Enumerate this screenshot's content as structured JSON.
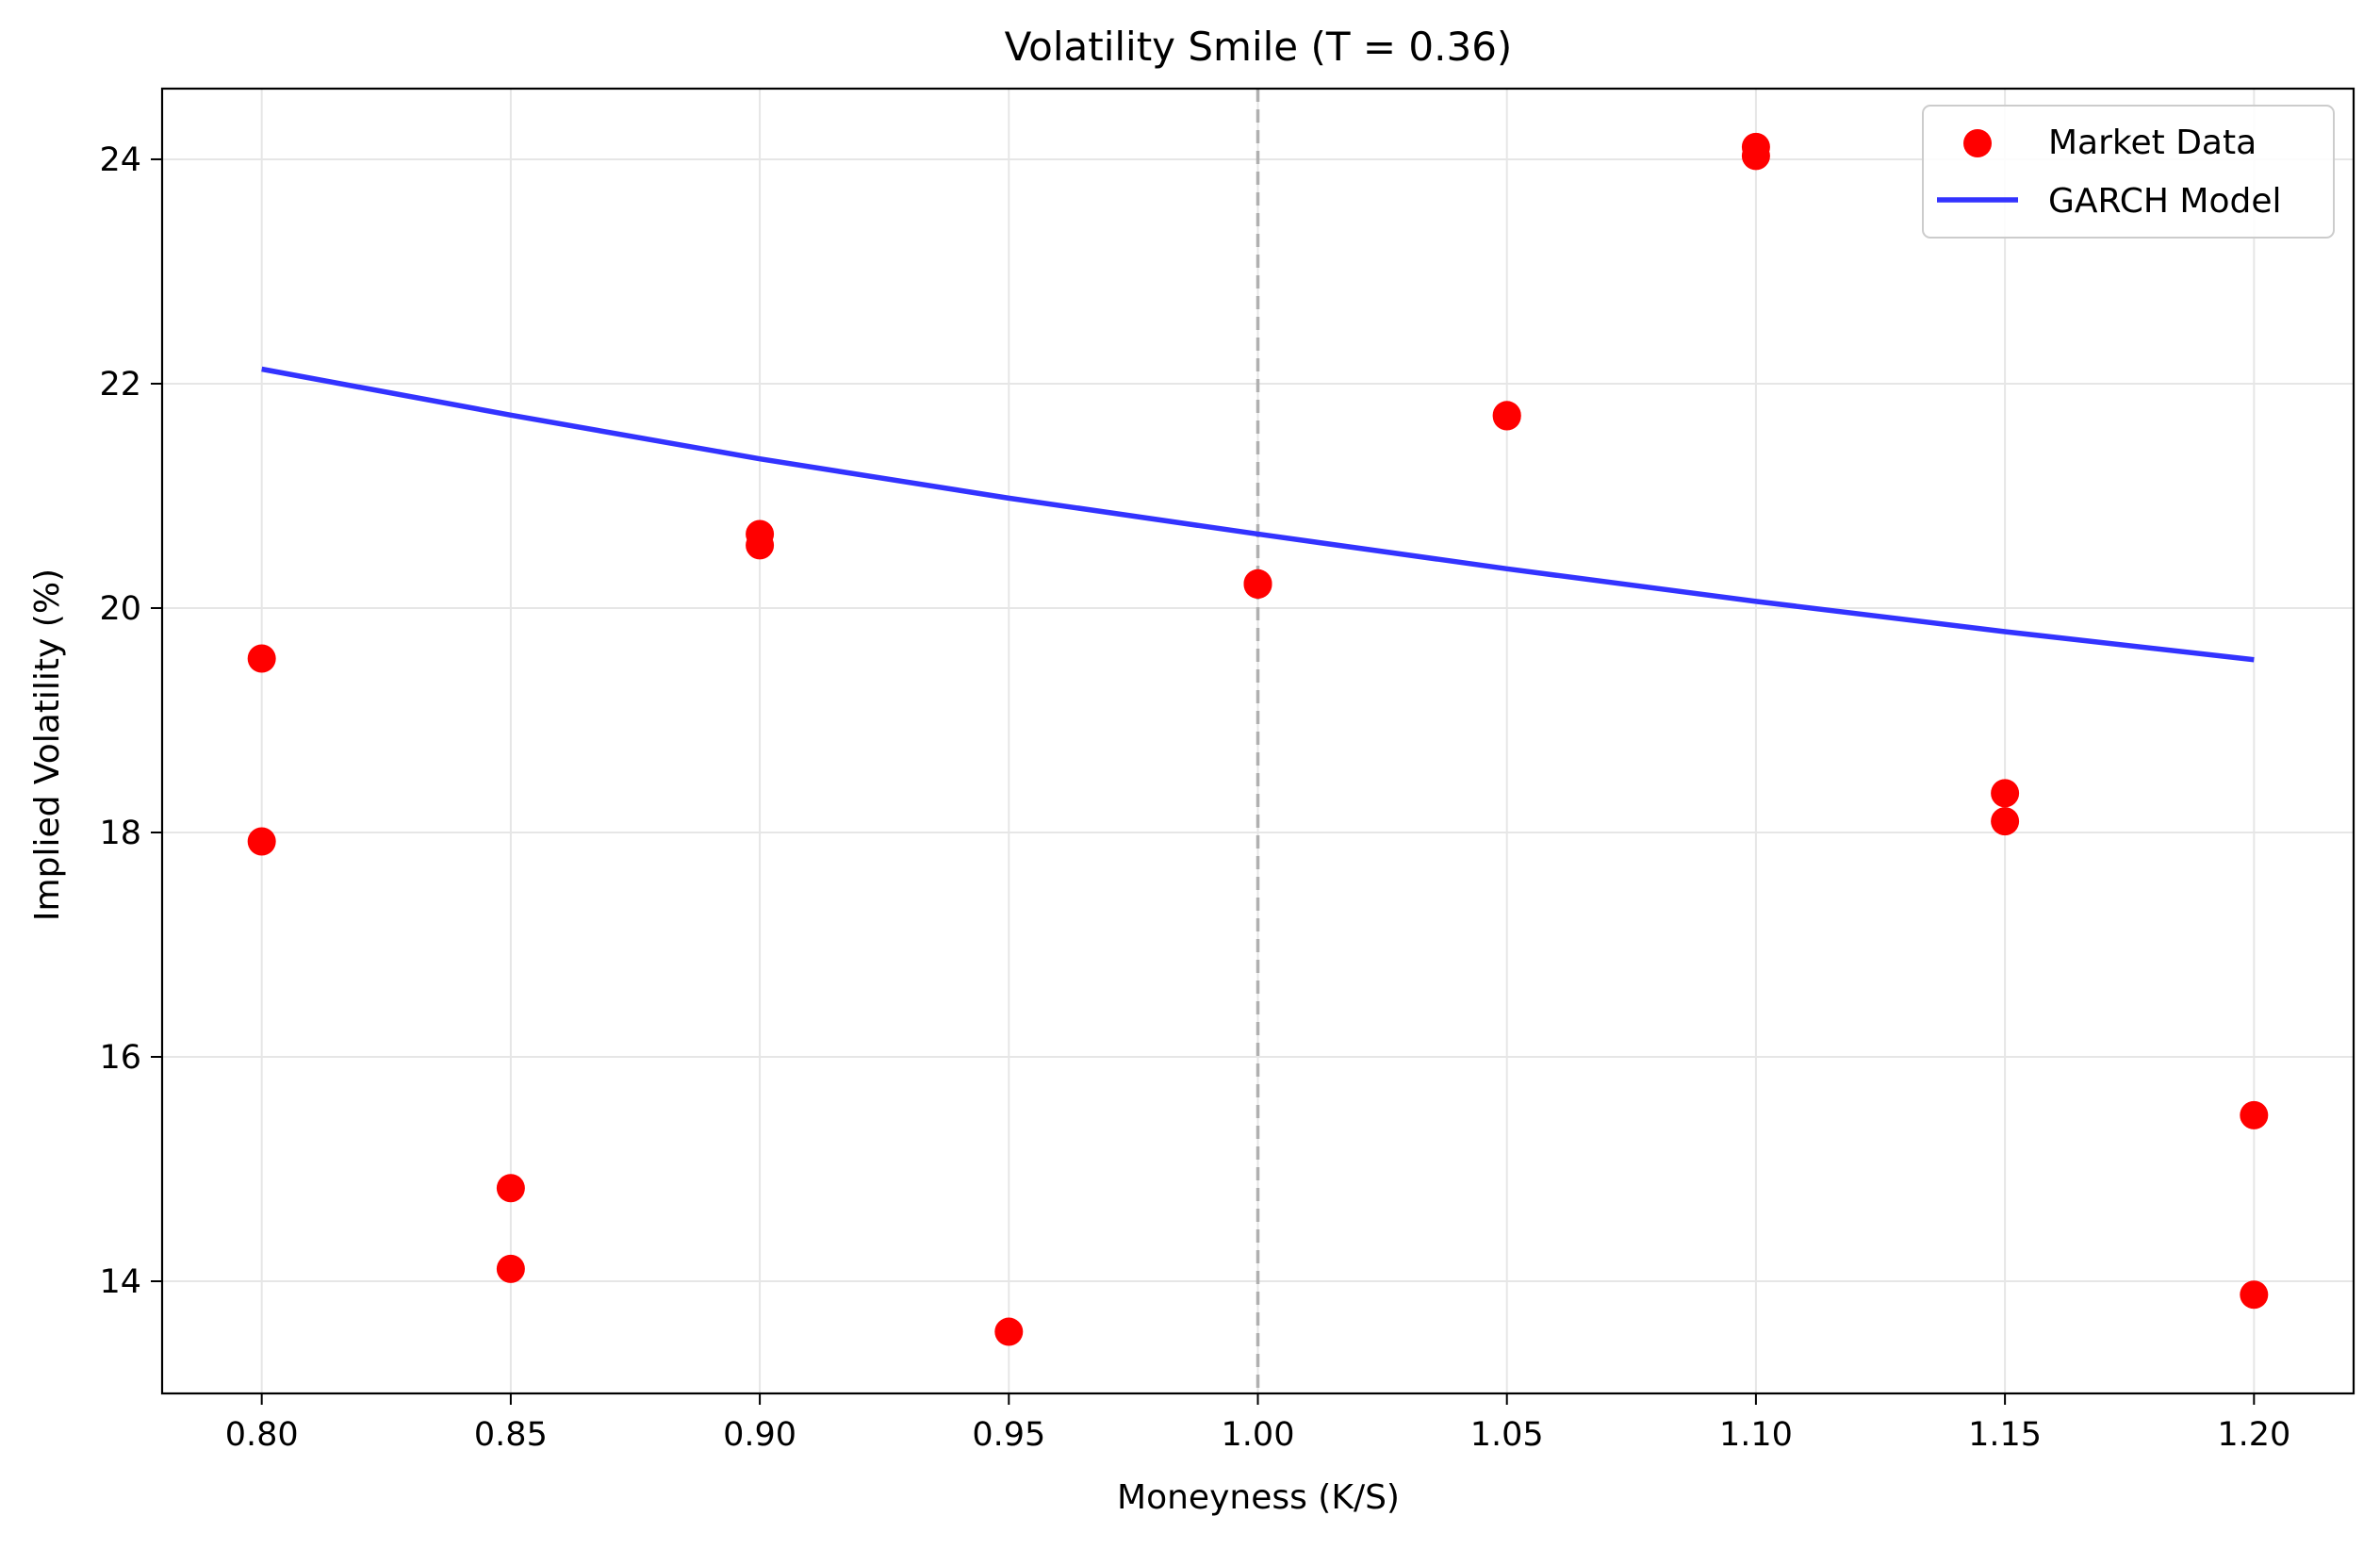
{
  "chart_data": {
    "type": "scatter",
    "title": "Volatility Smile (T = 0.36)",
    "xlabel": "Moneyness (K/S)",
    "ylabel": "Implied Volatility (%)",
    "xlim": [
      0.78,
      1.22
    ],
    "ylim": [
      13.0,
      24.63
    ],
    "x_ticks": [
      0.8,
      0.85,
      0.9,
      0.95,
      1.0,
      1.05,
      1.1,
      1.15,
      1.2
    ],
    "x_tick_labels": [
      "0.80",
      "0.85",
      "0.90",
      "0.95",
      "1.00",
      "1.05",
      "1.10",
      "1.15",
      "1.20"
    ],
    "y_ticks": [
      14,
      16,
      18,
      20,
      22,
      24
    ],
    "y_tick_labels": [
      "14",
      "16",
      "18",
      "20",
      "22",
      "24"
    ],
    "grid": true,
    "legend_position": "top-right",
    "reference_line": {
      "x": 1.0,
      "style": "dashed",
      "color": "#b0b0b0"
    },
    "series": [
      {
        "name": "Market Data",
        "kind": "scatter",
        "color": "#ff0000",
        "points": [
          {
            "x": 0.8,
            "y": 19.55
          },
          {
            "x": 0.8,
            "y": 17.92
          },
          {
            "x": 0.85,
            "y": 14.83
          },
          {
            "x": 0.85,
            "y": 14.11
          },
          {
            "x": 0.9,
            "y": 20.66
          },
          {
            "x": 0.9,
            "y": 20.56
          },
          {
            "x": 0.95,
            "y": 13.55
          },
          {
            "x": 1.0,
            "y": 20.22
          },
          {
            "x": 1.0,
            "y": 20.21
          },
          {
            "x": 1.05,
            "y": 21.72
          },
          {
            "x": 1.05,
            "y": 21.71
          },
          {
            "x": 1.1,
            "y": 24.11
          },
          {
            "x": 1.1,
            "y": 24.03
          },
          {
            "x": 1.15,
            "y": 18.35
          },
          {
            "x": 1.15,
            "y": 18.1
          },
          {
            "x": 1.2,
            "y": 15.48
          },
          {
            "x": 1.2,
            "y": 13.88
          }
        ]
      },
      {
        "name": "GARCH Model",
        "kind": "line",
        "color": "#3333ff",
        "points": [
          {
            "x": 0.8,
            "y": 22.13
          },
          {
            "x": 0.85,
            "y": 21.72
          },
          {
            "x": 0.9,
            "y": 21.33
          },
          {
            "x": 0.95,
            "y": 20.98
          },
          {
            "x": 1.0,
            "y": 20.66
          },
          {
            "x": 1.05,
            "y": 20.35
          },
          {
            "x": 1.1,
            "y": 20.06
          },
          {
            "x": 1.15,
            "y": 19.79
          },
          {
            "x": 1.2,
            "y": 19.54
          }
        ]
      }
    ]
  }
}
